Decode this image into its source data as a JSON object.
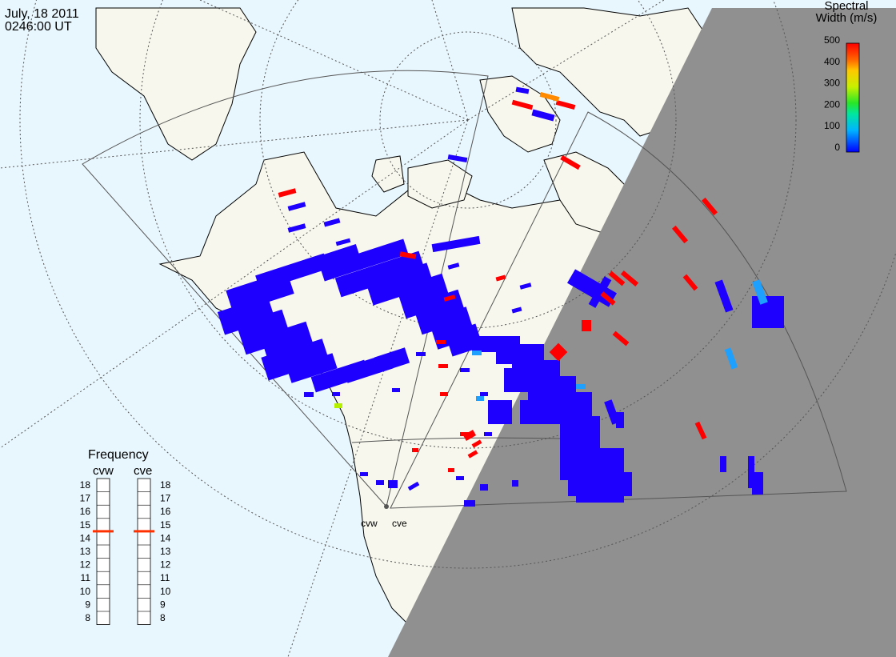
{
  "header": {
    "date": "July, 18 2011",
    "time": "0246:00 UT"
  },
  "legend": {
    "title_line1": "Spectral",
    "title_line2": "Width (m/s)",
    "ticks": [
      "500",
      "400",
      "300",
      "200",
      "100",
      "0"
    ],
    "colors": [
      "#0000ff",
      "#00b4ff",
      "#00e6a0",
      "#28e628",
      "#c8f000",
      "#ffc800",
      "#ff6400",
      "#ff0000"
    ]
  },
  "frequency": {
    "title": "Frequency",
    "radars": [
      {
        "code": "cvw",
        "selected_mhz": 15
      },
      {
        "code": "cve",
        "selected_mhz": 15
      }
    ],
    "scale": [
      "18",
      "17",
      "16",
      "15",
      "14",
      "13",
      "12",
      "11",
      "10",
      "9",
      "8"
    ],
    "indicator_color": "#ff3000"
  },
  "radar_sites": {
    "west_label": "cvw",
    "east_label": "cve"
  },
  "colors": {
    "ocean": "#e8f6fd",
    "land": "#f7f7ed",
    "night": "#909090",
    "scatter_blue": "#1e00ff",
    "scatter_red": "#ff0000",
    "scatter_orange": "#ff8a00",
    "scatter_cyan": "#1ea0ff",
    "scatter_yellow": "#b4f000"
  }
}
